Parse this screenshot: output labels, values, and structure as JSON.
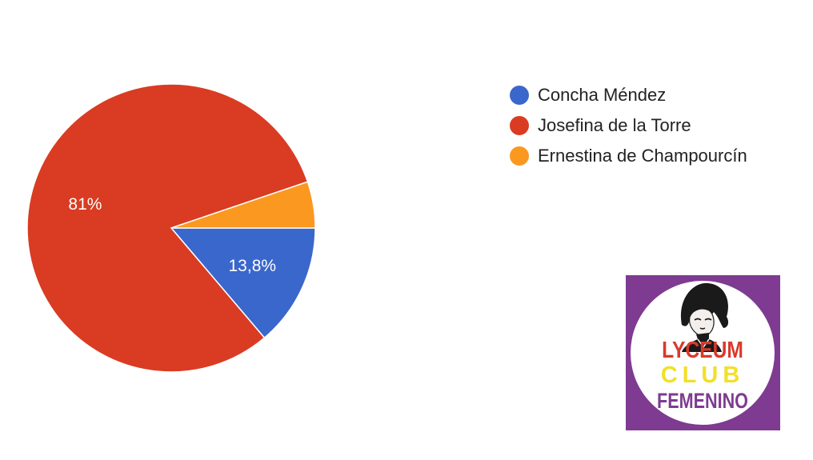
{
  "chart_data": {
    "type": "pie",
    "categories": [
      "Concha Méndez",
      "Josefina de la Torre",
      "Ernestina de Champourcín"
    ],
    "values": [
      13.8,
      81,
      5.2
    ],
    "data_labels": [
      "13,8%",
      "81%",
      ""
    ],
    "colors": [
      "#3a67cc",
      "#d93c22",
      "#fb981f"
    ],
    "legend_position": "right"
  },
  "logo": {
    "text_lines": [
      "LYCEUM",
      "CLUB",
      "FEMENINO"
    ],
    "colors": {
      "background": "#7e3b91",
      "circle": "#ffffff",
      "line1": "#d83a2c",
      "line2": "#f2df2a",
      "line3": "#7e3b91"
    }
  }
}
